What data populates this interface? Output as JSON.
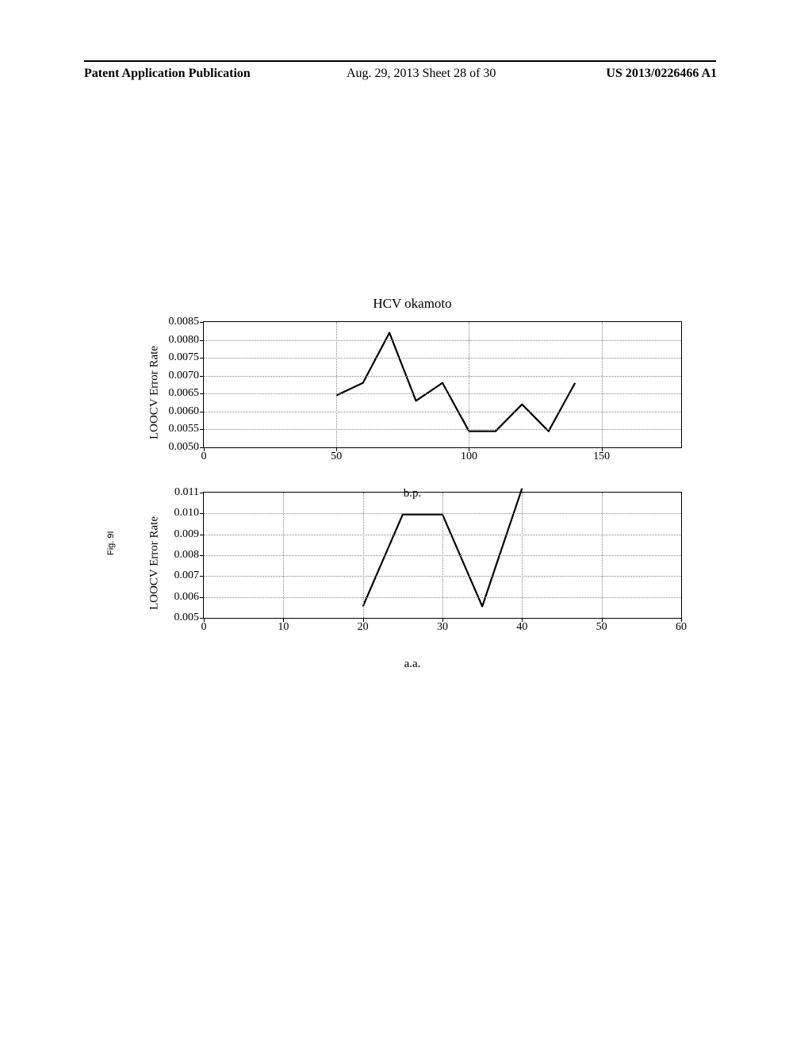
{
  "header": {
    "left": "Patent Application Publication",
    "center": "Aug. 29, 2013  Sheet 28 of 30",
    "right": "US 2013/0226466 A1"
  },
  "figure_label": "Fig. 9I",
  "chart1": {
    "type": "line",
    "title": "HCV okamoto",
    "ylabel": "LOOCV Error Rate",
    "xlabel": "b.p.",
    "xlim": [
      0,
      180
    ],
    "ylim": [
      0.005,
      0.0085
    ],
    "yticks": [
      0.005,
      0.0055,
      0.006,
      0.0065,
      0.007,
      0.0075,
      0.008,
      0.0085
    ],
    "ytick_labels": [
      "0.0050",
      "0.0055",
      "0.0060",
      "0.0065",
      "0.0070",
      "0.0075",
      "0.0080",
      "0.0085"
    ],
    "xticks": [
      0,
      50,
      100,
      150
    ],
    "xtick_labels": [
      "0",
      "50",
      "100",
      "150"
    ],
    "grid_x_at": [
      50,
      100,
      150
    ],
    "grid_y_at": [
      0.0055,
      0.006,
      0.0065,
      0.007,
      0.0075,
      0.008
    ],
    "line_color": "#000000",
    "line_width": 2.2,
    "x": [
      50,
      60,
      70,
      80,
      90,
      100,
      110,
      120,
      130,
      140
    ],
    "y": [
      0.00645,
      0.0068,
      0.0082,
      0.0063,
      0.0068,
      0.00545,
      0.00545,
      0.0062,
      0.00545,
      0.0068
    ]
  },
  "chart2": {
    "type": "line",
    "title": "",
    "ylabel": "LOOCV Error Rate",
    "xlabel": "a.a.",
    "xlim": [
      0,
      60
    ],
    "ylim": [
      0.005,
      0.011
    ],
    "yticks": [
      0.005,
      0.006,
      0.007,
      0.008,
      0.009,
      0.01,
      0.011
    ],
    "ytick_labels": [
      "0.005",
      "0.006",
      "0.007",
      "0.008",
      "0.009",
      "0.010",
      "0.011"
    ],
    "xticks": [
      0,
      10,
      20,
      30,
      40,
      50,
      60
    ],
    "xtick_labels": [
      "0",
      "10",
      "20",
      "30",
      "40",
      "50",
      "60"
    ],
    "grid_x_at": [
      10,
      20,
      30,
      40,
      50
    ],
    "grid_y_at": [
      0.006,
      0.007,
      0.008,
      0.009,
      0.01
    ],
    "line_color": "#000000",
    "line_width": 2.2,
    "x": [
      20,
      25,
      30,
      35,
      40
    ],
    "y": [
      0.00555,
      0.00995,
      0.00995,
      0.00555,
      0.0112
    ]
  }
}
